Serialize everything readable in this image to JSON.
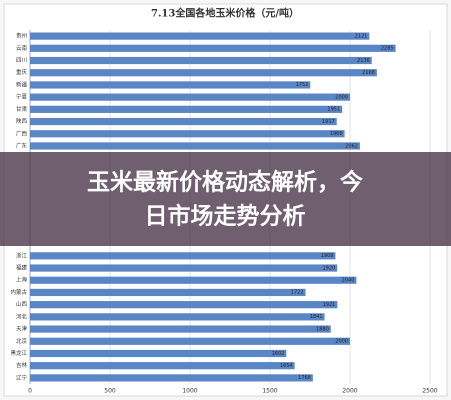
{
  "chart_data": {
    "type": "barh",
    "title": "7.13全国各地玉米价格（元/吨）",
    "categories": [
      "贵州",
      "云南",
      "四川",
      "重庆",
      "新疆",
      "宁夏",
      "甘肃",
      "陕西",
      "广西",
      "广东",
      null,
      null,
      null,
      null,
      null,
      null,
      null,
      null,
      "浙江",
      "福建",
      "上海",
      "内蒙古",
      "山西",
      "河北",
      "天津",
      "北京",
      "黑龙江",
      "吉林",
      "辽宁"
    ],
    "values": [
      2121,
      2285,
      2136,
      2168,
      1752,
      2000,
      1951,
      1917,
      1966,
      2062,
      null,
      null,
      null,
      null,
      null,
      null,
      null,
      null,
      1909,
      1920,
      2040,
      1722,
      1921,
      1841,
      1880,
      2000,
      1602,
      1654,
      1768
    ],
    "color": "#5b86c5",
    "xlim": [
      0,
      2500
    ],
    "xticks": [
      0,
      500,
      1000,
      1500,
      2000,
      2500
    ],
    "grid": true
  },
  "banner": {
    "lines": [
      "玉米最新价格动态解析，今",
      "日市场走势分析"
    ]
  }
}
